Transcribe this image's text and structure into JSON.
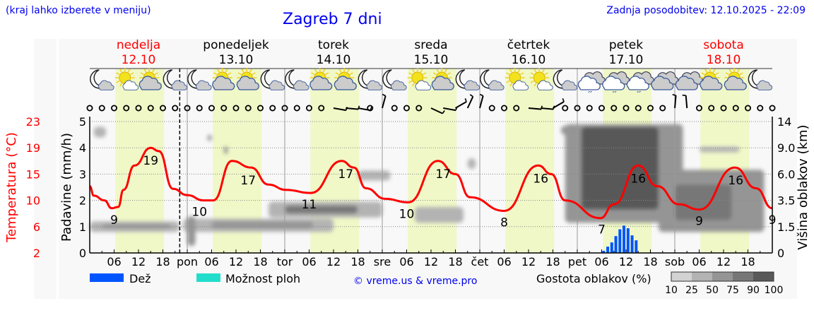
{
  "header": {
    "hint": "(kraj lahko izberete v meniju)",
    "title": "Zagreb 7 dni",
    "updated": "Zadnja posodobitev: 12.10.2025 - 22:09"
  },
  "colors": {
    "temperature": "#ff0000",
    "rain": "#0055ff",
    "storm_chance": "#22ddcc",
    "daylight": "#f0f8c8",
    "weekend": "#ff0000",
    "link": "#0000ee"
  },
  "days": [
    {
      "name": "nedelja",
      "date": "12.10",
      "weekend": true
    },
    {
      "name": "ponedeljek",
      "date": "13.10",
      "weekend": false
    },
    {
      "name": "torek",
      "date": "14.10",
      "weekend": false
    },
    {
      "name": "sreda",
      "date": "15.10",
      "weekend": false
    },
    {
      "name": "četrtek",
      "date": "16.10",
      "weekend": false
    },
    {
      "name": "petek",
      "date": "17.10",
      "weekend": false
    },
    {
      "name": "sobota",
      "date": "18.10",
      "weekend": true
    }
  ],
  "icons": [
    "moon-cloud",
    "sun-small-cloud",
    "sun-cloud",
    "moon-cloud",
    "moon-cloud",
    "sun-cloud",
    "sun-cloud",
    "moon-cloud",
    "moon-cloud",
    "sun-cloud",
    "sun-cloud",
    "moon-cloud",
    "moon-cloud",
    "sun-small-cloud",
    "sun-cloud",
    "moon-cloud",
    "moon-cloud",
    "sun-small-cloud",
    "sun-small-cloud",
    "moon-cloud",
    "cloud-drizzle",
    "cloud-drizzle",
    "cloud-drizzle",
    "overcast",
    "overcast",
    "sun-cloud",
    "sun-cloud",
    "moon-cloud"
  ],
  "wind": {
    "calm_symbol": "circle",
    "barbs": [
      {
        "hour": 60,
        "dir": 100
      },
      {
        "hour": 63,
        "dir": 95
      },
      {
        "hour": 66,
        "dir": 100
      },
      {
        "hour": 72,
        "dir": 15
      },
      {
        "hour": 84,
        "dir": 115
      },
      {
        "hour": 87,
        "dir": 100
      },
      {
        "hour": 90,
        "dir": 60
      },
      {
        "hour": 93,
        "dir": 25
      },
      {
        "hour": 96,
        "dir": 15
      },
      {
        "hour": 108,
        "dir": 95
      },
      {
        "hour": 111,
        "dir": 95
      },
      {
        "hour": 114,
        "dir": 60
      },
      {
        "hour": 144,
        "dir": 5
      },
      {
        "hour": 147,
        "dir": 355
      }
    ]
  },
  "chart_data": {
    "type": "line",
    "now_hour": 22.15,
    "x_ticks": [
      "06",
      "12",
      "18",
      "pon",
      "06",
      "12",
      "18",
      "tor",
      "06",
      "12",
      "18",
      "sre",
      "06",
      "12",
      "18",
      "čet",
      "06",
      "12",
      "18",
      "pet",
      "06",
      "12",
      "18",
      "sob",
      "06",
      "12",
      "18"
    ],
    "left_axis_temperature": {
      "label": "Temperatura (°C)",
      "ticks": [
        2,
        6,
        10,
        15,
        19,
        23
      ]
    },
    "left_axis_precip": {
      "label": "Padavine (mm/h)",
      "ticks": [
        0,
        1,
        2,
        3,
        4,
        5
      ],
      "range": [
        0,
        5
      ]
    },
    "right_axis_cloud": {
      "label": "Višina oblakov (km)",
      "ticks": [
        "0",
        "1.5",
        "3.5",
        "6.0",
        "9.0",
        "14"
      ]
    },
    "grid": true,
    "temperature": {
      "hours": [
        0,
        1,
        3.6,
        5.4,
        7,
        8.3,
        11,
        15,
        17,
        20.5,
        24,
        28,
        30.4,
        35,
        39.7,
        44,
        48.3,
        54.4,
        62,
        65,
        68,
        72.7,
        78.4,
        85.7,
        90,
        93.6,
        102,
        110.4,
        113.6,
        117,
        125.7,
        129,
        135,
        139.7,
        145,
        150,
        158.8,
        164,
        168
      ],
      "values": [
        12.7,
        10.9,
        10,
        8.8,
        9,
        12,
        16.3,
        19,
        18.5,
        12.2,
        11,
        10,
        10,
        17,
        16,
        13,
        12,
        11.4,
        17,
        16,
        12.3,
        10.3,
        9.7,
        17,
        15,
        10.6,
        8.4,
        16.3,
        15,
        10,
        7.3,
        9.4,
        16.3,
        12.7,
        9.4,
        8.6,
        16,
        12.3,
        8.8
      ]
    },
    "temperature_labels": [
      {
        "hour": 6,
        "value": "9"
      },
      {
        "hour": 15,
        "value": "19"
      },
      {
        "hour": 27,
        "value": "10"
      },
      {
        "hour": 39,
        "value": "17"
      },
      {
        "hour": 54,
        "value": "11"
      },
      {
        "hour": 63,
        "value": "17"
      },
      {
        "hour": 78,
        "value": "10"
      },
      {
        "hour": 87,
        "value": "17"
      },
      {
        "hour": 102,
        "value": "8"
      },
      {
        "hour": 111,
        "value": "16"
      },
      {
        "hour": 126,
        "value": "7"
      },
      {
        "hour": 135,
        "value": "16"
      },
      {
        "hour": 150,
        "value": "9"
      },
      {
        "hour": 159,
        "value": "16"
      },
      {
        "hour": 168,
        "value": "9"
      }
    ],
    "precipitation": {
      "start_hour": 126,
      "values": [
        0.08,
        0.24,
        0.4,
        0.64,
        0.9,
        1.04,
        0.94,
        0.67,
        0.48
      ]
    },
    "cloud_density": [
      {
        "hours": [
          1,
          4
        ],
        "km": [
          11,
          13
        ],
        "density": 25
      },
      {
        "hours": [
          0,
          22
        ],
        "km": [
          1.2,
          1.9
        ],
        "density": 25
      },
      {
        "hours": [
          3,
          20
        ],
        "km": [
          1.4,
          1.7
        ],
        "density": 50
      },
      {
        "hours": [
          23,
          60
        ],
        "km": [
          1.2,
          2.1
        ],
        "density": 25
      },
      {
        "hours": [
          24,
          26
        ],
        "km": [
          0.4,
          2.3
        ],
        "density": 50
      },
      {
        "hours": [
          30,
          55
        ],
        "km": [
          1.4,
          1.9
        ],
        "density": 50
      },
      {
        "hours": [
          29,
          30
        ],
        "km": [
          10.3,
          11.5
        ],
        "density": 50
      },
      {
        "hours": [
          33,
          34
        ],
        "km": [
          8.3,
          9.3
        ],
        "density": 50
      },
      {
        "hours": [
          44,
          72
        ],
        "km": [
          2.2,
          3.4
        ],
        "density": 25
      },
      {
        "hours": [
          48,
          66
        ],
        "km": [
          2.5,
          3.1
        ],
        "density": 75
      },
      {
        "hours": [
          66,
          74
        ],
        "km": [
          5.4,
          6.4
        ],
        "density": 25
      },
      {
        "hours": [
          80,
          92
        ],
        "km": [
          1.8,
          3.0
        ],
        "density": 25
      },
      {
        "hours": [
          93,
          95
        ],
        "km": [
          6.6,
          7.8
        ],
        "density": 25
      },
      {
        "hours": [
          116,
          121
        ],
        "km": [
          11.5,
          13.2
        ],
        "density": 50
      },
      {
        "hours": [
          117,
          146
        ],
        "km": [
          1.8,
          13.5
        ],
        "density": 50
      },
      {
        "hours": [
          121,
          140
        ],
        "km": [
          2.8,
          13
        ],
        "density": 90
      },
      {
        "hours": [
          140,
          166
        ],
        "km": [
          1.2,
          6.5
        ],
        "density": 50
      },
      {
        "hours": [
          144,
          158
        ],
        "km": [
          2,
          5
        ],
        "density": 75
      },
      {
        "hours": [
          150,
          160
        ],
        "km": [
          8.5,
          9.2
        ],
        "density": 25
      }
    ]
  },
  "legend": {
    "rain": "Dež",
    "storm_chance": "Možnost ploh",
    "copyright": "© vreme.us & vreme.pro",
    "cloud_density_title": "Gostota oblakov (%)",
    "cloud_density_levels": [
      "10",
      "25",
      "50",
      "75",
      "90",
      "100"
    ],
    "cloud_density_colors": [
      "#d2d2d2",
      "#b3b3b3",
      "#959595",
      "#777777",
      "#595959"
    ]
  }
}
